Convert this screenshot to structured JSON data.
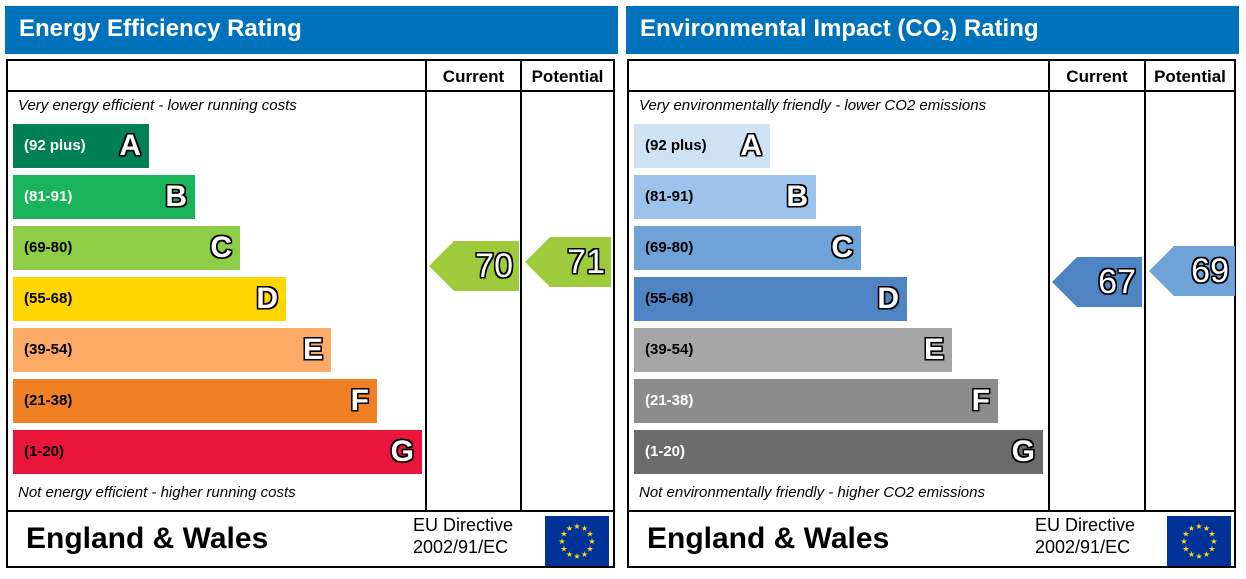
{
  "chart_data": [
    {
      "type": "bar",
      "title": "Energy Efficiency Rating",
      "columns": [
        "Current",
        "Potential"
      ],
      "top_caption": "Very energy efficient - lower running costs",
      "bottom_caption": "Not energy efficient - higher running costs",
      "bands": [
        {
          "letter": "A",
          "range": "(92 plus)",
          "color": "#008054",
          "text_color": "#ffffff"
        },
        {
          "letter": "B",
          "range": "(81-91)",
          "color": "#19b459",
          "text_color": "#ffffff"
        },
        {
          "letter": "C",
          "range": "(69-80)",
          "color": "#8dce46",
          "text_color": "#000000"
        },
        {
          "letter": "D",
          "range": "(55-68)",
          "color": "#ffd500",
          "text_color": "#000000"
        },
        {
          "letter": "E",
          "range": "(39-54)",
          "color": "#fcaa65",
          "text_color": "#000000"
        },
        {
          "letter": "F",
          "range": "(21-38)",
          "color": "#ef8023",
          "text_color": "#000000"
        },
        {
          "letter": "G",
          "range": "(1-20)",
          "color": "#e9153b",
          "text_color": "#000000"
        }
      ],
      "current": {
        "value": 70,
        "band": "C",
        "color": "#9dcb3c"
      },
      "potential": {
        "value": 71,
        "band": "C",
        "color": "#9dcb3c"
      },
      "footer": {
        "region": "England & Wales",
        "directive_line1": "EU Directive",
        "directive_line2": "2002/91/EC"
      }
    },
    {
      "type": "bar",
      "title_main": "Environmental Impact (CO",
      "title_sub": "2",
      "title_end": ") Rating",
      "columns": [
        "Current",
        "Potential"
      ],
      "top_caption": "Very environmentally friendly - lower CO2 emissions",
      "bottom_caption": "Not environmentally friendly - higher CO2 emissions",
      "bands": [
        {
          "letter": "A",
          "range": "(92 plus)",
          "color": "#cfe2f3",
          "text_color": "#000000"
        },
        {
          "letter": "B",
          "range": "(81-91)",
          "color": "#9cc2ec",
          "text_color": "#000000"
        },
        {
          "letter": "C",
          "range": "(69-80)",
          "color": "#6fa3d8",
          "text_color": "#000000"
        },
        {
          "letter": "D",
          "range": "(55-68)",
          "color": "#4e84c4",
          "text_color": "#000000"
        },
        {
          "letter": "E",
          "range": "(39-54)",
          "color": "#a6a6a6",
          "text_color": "#000000"
        },
        {
          "letter": "F",
          "range": "(21-38)",
          "color": "#8c8c8c",
          "text_color": "#ffffff"
        },
        {
          "letter": "G",
          "range": "(1-20)",
          "color": "#6b6b6b",
          "text_color": "#ffffff"
        }
      ],
      "current": {
        "value": 67,
        "band": "D",
        "color": "#4e84c4"
      },
      "potential": {
        "value": 69,
        "band": "C",
        "color": "#6fa3d8"
      },
      "footer": {
        "region": "England & Wales",
        "directive_line1": "EU Directive",
        "directive_line2": "2002/91/EC"
      }
    }
  ],
  "colors": {
    "header_blue": "#0072BB",
    "eu_flag_blue": "#003399",
    "eu_flag_star": "#ffdd00"
  }
}
